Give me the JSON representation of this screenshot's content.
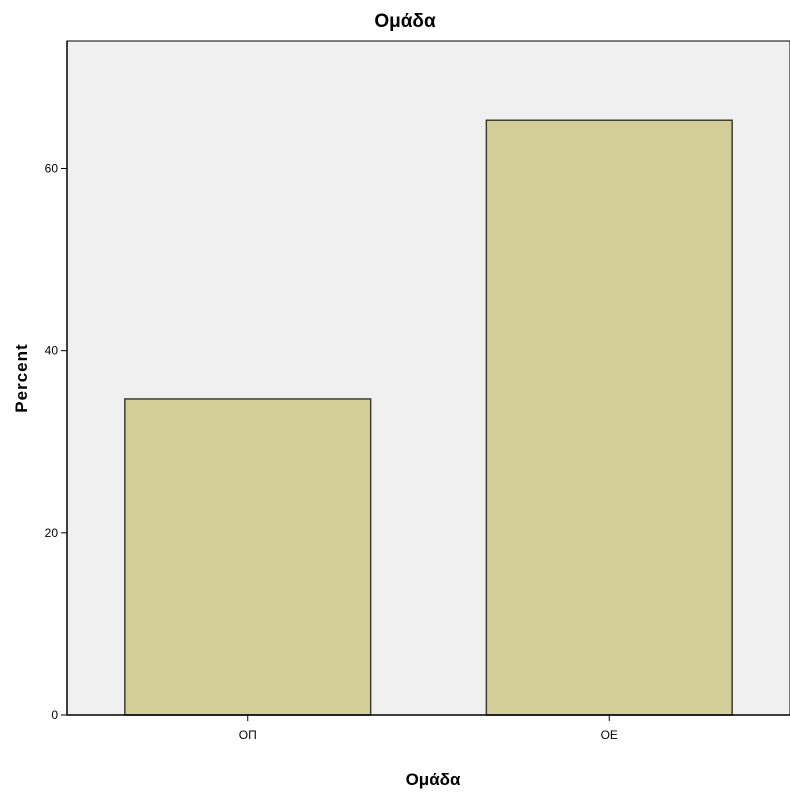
{
  "chart_data": {
    "type": "bar",
    "title": "Ομάδα",
    "xlabel": "Ομάδα",
    "ylabel": "Percent",
    "categories": [
      "ΟΠ",
      "ΟΕ"
    ],
    "values": [
      34.7,
      65.3
    ],
    "ylim": [
      0,
      74
    ],
    "yticks": [
      0,
      20,
      40,
      60
    ],
    "grid": false,
    "colors": {
      "plot_background": "#f0f0f0",
      "bar_fill": "#d3ce97",
      "bar_stroke": "#3c3c3c",
      "axis": "#000000"
    }
  }
}
